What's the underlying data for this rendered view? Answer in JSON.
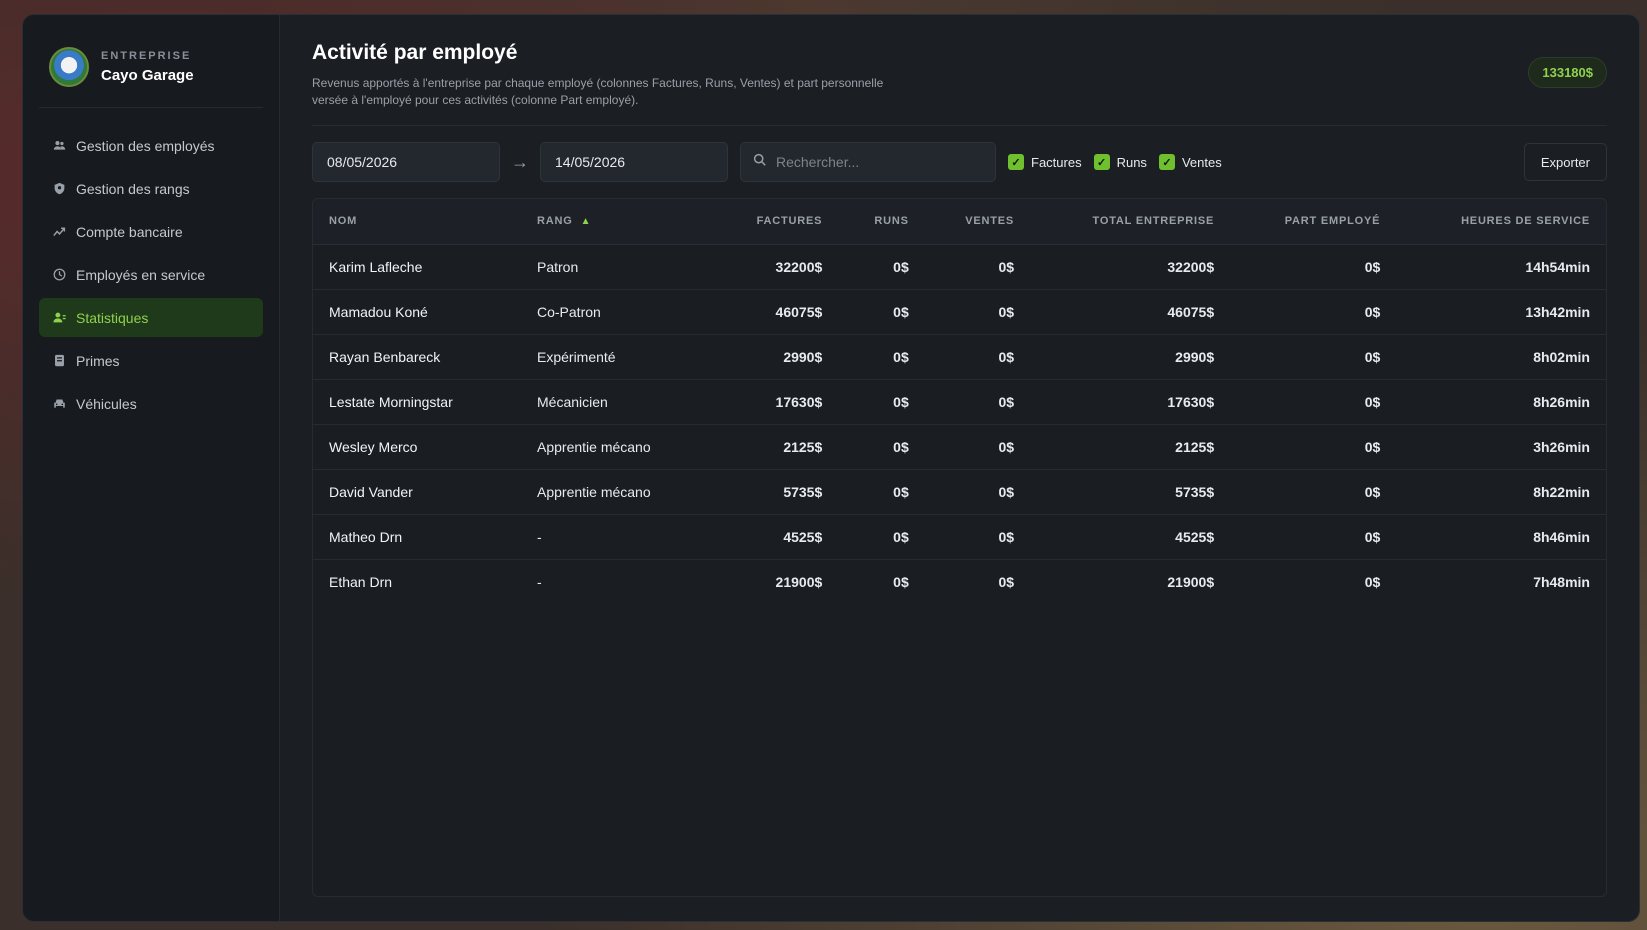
{
  "brand": {
    "kicker": "ENTREPRISE",
    "name": "Cayo Garage"
  },
  "nav": [
    {
      "label": "Gestion des employés",
      "icon": "users-icon",
      "active": false
    },
    {
      "label": "Gestion des rangs",
      "icon": "shield-icon",
      "active": false
    },
    {
      "label": "Compte bancaire",
      "icon": "chart-icon",
      "active": false
    },
    {
      "label": "Employés en service",
      "icon": "clock-icon",
      "active": false
    },
    {
      "label": "Statistiques",
      "icon": "user-stats-icon",
      "active": true
    },
    {
      "label": "Primes",
      "icon": "bonus-icon",
      "active": false
    },
    {
      "label": "Véhicules",
      "icon": "car-icon",
      "active": false
    }
  ],
  "header": {
    "title": "Activité par employé",
    "description": "Revenus apportés à l'entreprise par chaque employé (colonnes Factures, Runs, Ventes) et part personnelle versée à l'employé pour ces activités (colonne Part employé).",
    "balance": "133180$"
  },
  "filters": {
    "date_from": "08/05/2026",
    "date_to": "14/05/2026",
    "arrow": "→",
    "search_placeholder": "Rechercher...",
    "checkboxes": [
      "Factures",
      "Runs",
      "Ventes"
    ],
    "export_label": "Exporter"
  },
  "table": {
    "columns": [
      "NOM",
      "RANG",
      "FACTURES",
      "RUNS",
      "VENTES",
      "TOTAL ENTREPRISE",
      "PART EMPLOYÉ",
      "HEURES DE SERVICE"
    ],
    "sort_indicator": "▲",
    "rows": [
      [
        "Karim Lafleche",
        "Patron",
        "32200$",
        "0$",
        "0$",
        "32200$",
        "0$",
        "14h54min"
      ],
      [
        "Mamadou Koné",
        "Co-Patron",
        "46075$",
        "0$",
        "0$",
        "46075$",
        "0$",
        "13h42min"
      ],
      [
        "Rayan Benbareck",
        "Expérimenté",
        "2990$",
        "0$",
        "0$",
        "2990$",
        "0$",
        "8h02min"
      ],
      [
        "Lestate Morningstar",
        "Mécanicien",
        "17630$",
        "0$",
        "0$",
        "17630$",
        "0$",
        "8h26min"
      ],
      [
        "Wesley Merco",
        "Apprentie mécano",
        "2125$",
        "0$",
        "0$",
        "2125$",
        "0$",
        "3h26min"
      ],
      [
        "David Vander",
        "Apprentie mécano",
        "5735$",
        "0$",
        "0$",
        "5735$",
        "0$",
        "8h22min"
      ],
      [
        "Matheo Drn",
        "-",
        "4525$",
        "0$",
        "0$",
        "4525$",
        "0$",
        "8h46min"
      ],
      [
        "Ethan Drn",
        "-",
        "21900$",
        "0$",
        "0$",
        "21900$",
        "0$",
        "7h48min"
      ]
    ]
  }
}
